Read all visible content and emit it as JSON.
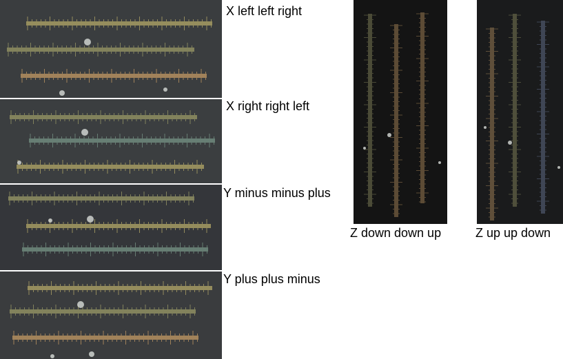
{
  "captions": {
    "x_left": "X left left right",
    "x_right": "X right right left",
    "y_minus": "Y minus minus plus",
    "y_plus": "Y plus plus minus",
    "z_down": "Z down down up",
    "z_up": "Z up up down"
  },
  "colors": {
    "panel_bg_x": "#3a3d3f",
    "panel_bg_y": "#34363a",
    "panel_bg_z": "#141414",
    "bar_yellow": "#a59b63",
    "bar_olive": "#8f8f62",
    "bar_orange": "#b48f5f",
    "bar_teal": "#6f8a7e",
    "bar_blue": "#6d7a9b"
  }
}
